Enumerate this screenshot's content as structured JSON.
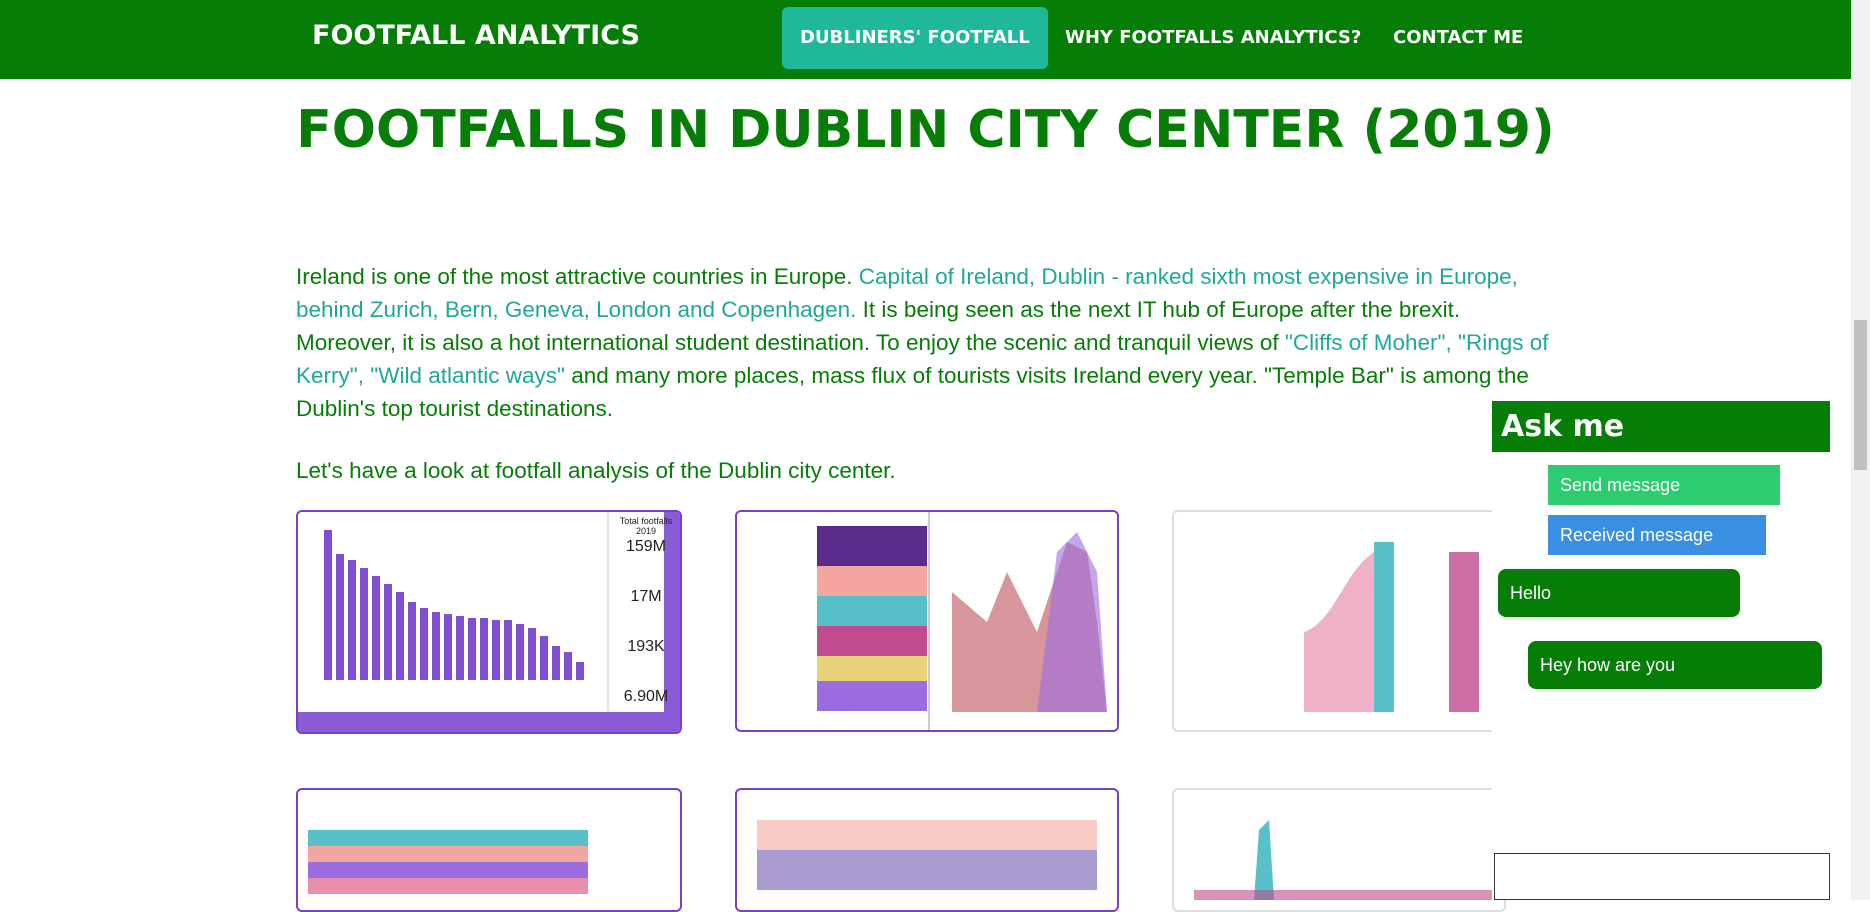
{
  "nav": {
    "brand": "FOOTFALL ANALYTICS",
    "links": [
      "DUBLINERS' FOOTFALL",
      "WHY FOOTFALLS ANALYTICS?",
      "CONTACT ME"
    ]
  },
  "heading": "FOOTFALLS IN DUBLIN CITY CENTER (2019)",
  "intro": [
    "Ireland is one of the most attractive countries in Europe. ",
    "Capital of Ireland, Dublin - ranked sixth most expensive in Europe, behind Zurich, Bern, Geneva, London and Copenhagen.",
    " It is being seen as the next IT hub of Europe after the brexit. Moreover, it is also a hot international student destination. To enjoy the scenic and tranquil views of ",
    "\"Cliffs of Moher\", \"Rings of Kerry\", \"Wild atlantic ways\"",
    " and many more places, mass flux of tourists visits Ireland every year. \"Temple Bar\" is among the Dublin's top tourist destinations."
  ],
  "lead": "Let's have a look at footfall analysis of the Dublin city center.",
  "dashboard": {
    "card_title": "Total footfalls 2019",
    "kpis": [
      "159M",
      "17M",
      "193K",
      "6.90M"
    ]
  },
  "chat": {
    "title": "Ask me",
    "legend": [
      "Send message",
      "Received message"
    ],
    "messages": [
      "Hello",
      "Hey how are you"
    ]
  }
}
